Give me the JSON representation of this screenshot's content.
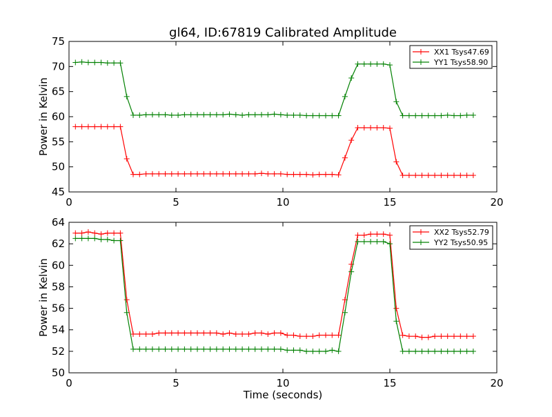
{
  "title": "gl64, ID:67819 Calibrated Amplitude",
  "colors": {
    "xx": "#ff0000",
    "yy": "#008000"
  },
  "chart_data": [
    {
      "type": "line",
      "xlabel": "",
      "ylabel": "Power in Kelvin",
      "xlim": [
        0,
        20
      ],
      "ylim": [
        45,
        75
      ],
      "xticks": [
        0,
        5,
        10,
        15,
        20
      ],
      "yticks": [
        45,
        50,
        55,
        60,
        65,
        70,
        75
      ],
      "grid": false,
      "legend_position": "upper-right",
      "x": [
        0.3,
        0.6,
        0.9,
        1.2,
        1.5,
        1.8,
        2.1,
        2.4,
        2.7,
        3.0,
        3.3,
        3.6,
        3.9,
        4.2,
        4.5,
        4.8,
        5.1,
        5.4,
        5.7,
        6.0,
        6.3,
        6.6,
        6.9,
        7.2,
        7.5,
        7.8,
        8.1,
        8.4,
        8.7,
        9.0,
        9.3,
        9.6,
        9.9,
        10.2,
        10.5,
        10.8,
        11.1,
        11.4,
        11.7,
        12.0,
        12.3,
        12.6,
        12.9,
        13.2,
        13.5,
        13.8,
        14.1,
        14.4,
        14.7,
        15.0,
        15.3,
        15.6,
        15.9,
        16.2,
        16.5,
        16.8,
        17.1,
        17.4,
        17.7,
        18.0,
        18.3,
        18.6,
        18.9
      ],
      "series": [
        {
          "name": "XX1 Tsys47.69",
          "color": "#ff0000",
          "values": [
            58.0,
            58.0,
            58.0,
            58.0,
            58.0,
            58.0,
            58.0,
            58.0,
            51.6,
            48.5,
            48.5,
            48.6,
            48.6,
            48.6,
            48.6,
            48.6,
            48.6,
            48.6,
            48.6,
            48.6,
            48.6,
            48.6,
            48.6,
            48.6,
            48.6,
            48.6,
            48.6,
            48.6,
            48.6,
            48.7,
            48.6,
            48.6,
            48.6,
            48.5,
            48.5,
            48.5,
            48.5,
            48.4,
            48.5,
            48.5,
            48.5,
            48.4,
            51.8,
            55.3,
            57.8,
            57.8,
            57.8,
            57.8,
            57.8,
            57.7,
            51.0,
            48.3,
            48.3,
            48.3,
            48.3,
            48.3,
            48.3,
            48.3,
            48.3,
            48.3,
            48.3,
            48.3,
            48.3
          ]
        },
        {
          "name": "YY1 Tsys58.90",
          "color": "#008000",
          "values": [
            70.8,
            70.9,
            70.8,
            70.8,
            70.8,
            70.7,
            70.7,
            70.7,
            64.0,
            60.3,
            60.3,
            60.4,
            60.4,
            60.4,
            60.4,
            60.3,
            60.3,
            60.4,
            60.4,
            60.4,
            60.4,
            60.4,
            60.4,
            60.4,
            60.5,
            60.4,
            60.3,
            60.4,
            60.4,
            60.4,
            60.4,
            60.5,
            60.4,
            60.3,
            60.3,
            60.3,
            60.2,
            60.2,
            60.2,
            60.2,
            60.2,
            60.2,
            64.0,
            67.7,
            70.5,
            70.5,
            70.5,
            70.5,
            70.5,
            70.3,
            63.0,
            60.2,
            60.2,
            60.2,
            60.2,
            60.2,
            60.2,
            60.2,
            60.3,
            60.2,
            60.2,
            60.3,
            60.3
          ]
        }
      ]
    },
    {
      "type": "line",
      "xlabel": "Time (seconds)",
      "ylabel": "Power in Kelvin",
      "xlim": [
        0,
        20
      ],
      "ylim": [
        50,
        64
      ],
      "xticks": [
        0,
        5,
        10,
        15,
        20
      ],
      "yticks": [
        50,
        52,
        54,
        56,
        58,
        60,
        62,
        64
      ],
      "grid": false,
      "legend_position": "upper-right",
      "x": [
        0.3,
        0.6,
        0.9,
        1.2,
        1.5,
        1.8,
        2.1,
        2.4,
        2.7,
        3.0,
        3.3,
        3.6,
        3.9,
        4.2,
        4.5,
        4.8,
        5.1,
        5.4,
        5.7,
        6.0,
        6.3,
        6.6,
        6.9,
        7.2,
        7.5,
        7.8,
        8.1,
        8.4,
        8.7,
        9.0,
        9.3,
        9.6,
        9.9,
        10.2,
        10.5,
        10.8,
        11.1,
        11.4,
        11.7,
        12.0,
        12.3,
        12.6,
        12.9,
        13.2,
        13.5,
        13.8,
        14.1,
        14.4,
        14.7,
        15.0,
        15.3,
        15.6,
        15.9,
        16.2,
        16.5,
        16.8,
        17.1,
        17.4,
        17.7,
        18.0,
        18.3,
        18.6,
        18.9
      ],
      "series": [
        {
          "name": "XX2 Tsys52.79",
          "color": "#ff0000",
          "values": [
            63.0,
            63.0,
            63.1,
            63.0,
            62.9,
            63.0,
            63.0,
            63.0,
            56.8,
            53.6,
            53.6,
            53.6,
            53.6,
            53.7,
            53.7,
            53.7,
            53.7,
            53.7,
            53.7,
            53.7,
            53.7,
            53.7,
            53.7,
            53.6,
            53.7,
            53.6,
            53.6,
            53.6,
            53.7,
            53.7,
            53.6,
            53.7,
            53.7,
            53.5,
            53.5,
            53.4,
            53.4,
            53.4,
            53.5,
            53.5,
            53.5,
            53.5,
            56.8,
            60.1,
            62.8,
            62.8,
            62.9,
            62.9,
            62.9,
            62.8,
            56.0,
            53.5,
            53.4,
            53.4,
            53.3,
            53.3,
            53.4,
            53.4,
            53.4,
            53.4,
            53.4,
            53.4,
            53.4
          ]
        },
        {
          "name": "YY2 Tsys50.95",
          "color": "#008000",
          "values": [
            62.5,
            62.5,
            62.5,
            62.5,
            62.4,
            62.4,
            62.3,
            62.3,
            55.6,
            52.2,
            52.2,
            52.2,
            52.2,
            52.2,
            52.2,
            52.2,
            52.2,
            52.2,
            52.2,
            52.2,
            52.2,
            52.2,
            52.2,
            52.2,
            52.2,
            52.2,
            52.2,
            52.2,
            52.2,
            52.2,
            52.2,
            52.2,
            52.2,
            52.1,
            52.1,
            52.1,
            52.0,
            52.0,
            52.0,
            52.0,
            52.1,
            52.0,
            55.6,
            59.4,
            62.2,
            62.2,
            62.2,
            62.2,
            62.2,
            62.0,
            54.8,
            52.0,
            52.0,
            52.0,
            52.0,
            52.0,
            52.0,
            52.0,
            52.0,
            52.0,
            52.0,
            52.0,
            52.0
          ]
        }
      ]
    }
  ]
}
